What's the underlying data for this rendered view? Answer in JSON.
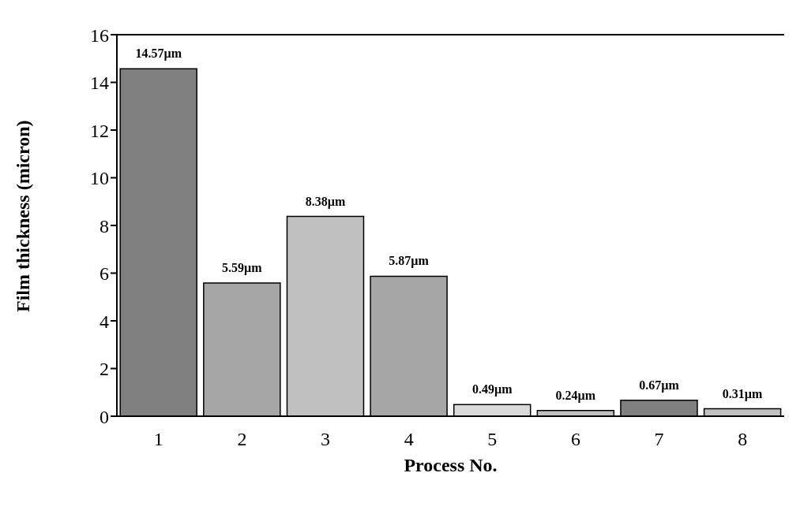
{
  "chart_data": {
    "type": "bar",
    "xlabel": "Process No.",
    "ylabel": "Film thickness (micron)",
    "categories": [
      "1",
      "2",
      "3",
      "4",
      "5",
      "6",
      "7",
      "8"
    ],
    "values": [
      14.57,
      5.59,
      8.38,
      5.87,
      0.49,
      0.24,
      0.67,
      0.31
    ],
    "colors": [
      "#808080",
      "#a6a6a6",
      "#c0c0c0",
      "#a6a6a6",
      "#d9d9d9",
      "#c0c0c0",
      "#808080",
      "#c0c0c0"
    ],
    "value_labels": [
      "14.57µm",
      "5.59µm",
      "8.38µm",
      "5.87µm",
      "0.49µm",
      "0.24µm",
      "0.67µm",
      "0.31µm"
    ],
    "ylim": [
      0,
      16
    ],
    "yticks": [
      0,
      2,
      4,
      6,
      8,
      10,
      12,
      14,
      16
    ],
    "grid": false
  }
}
